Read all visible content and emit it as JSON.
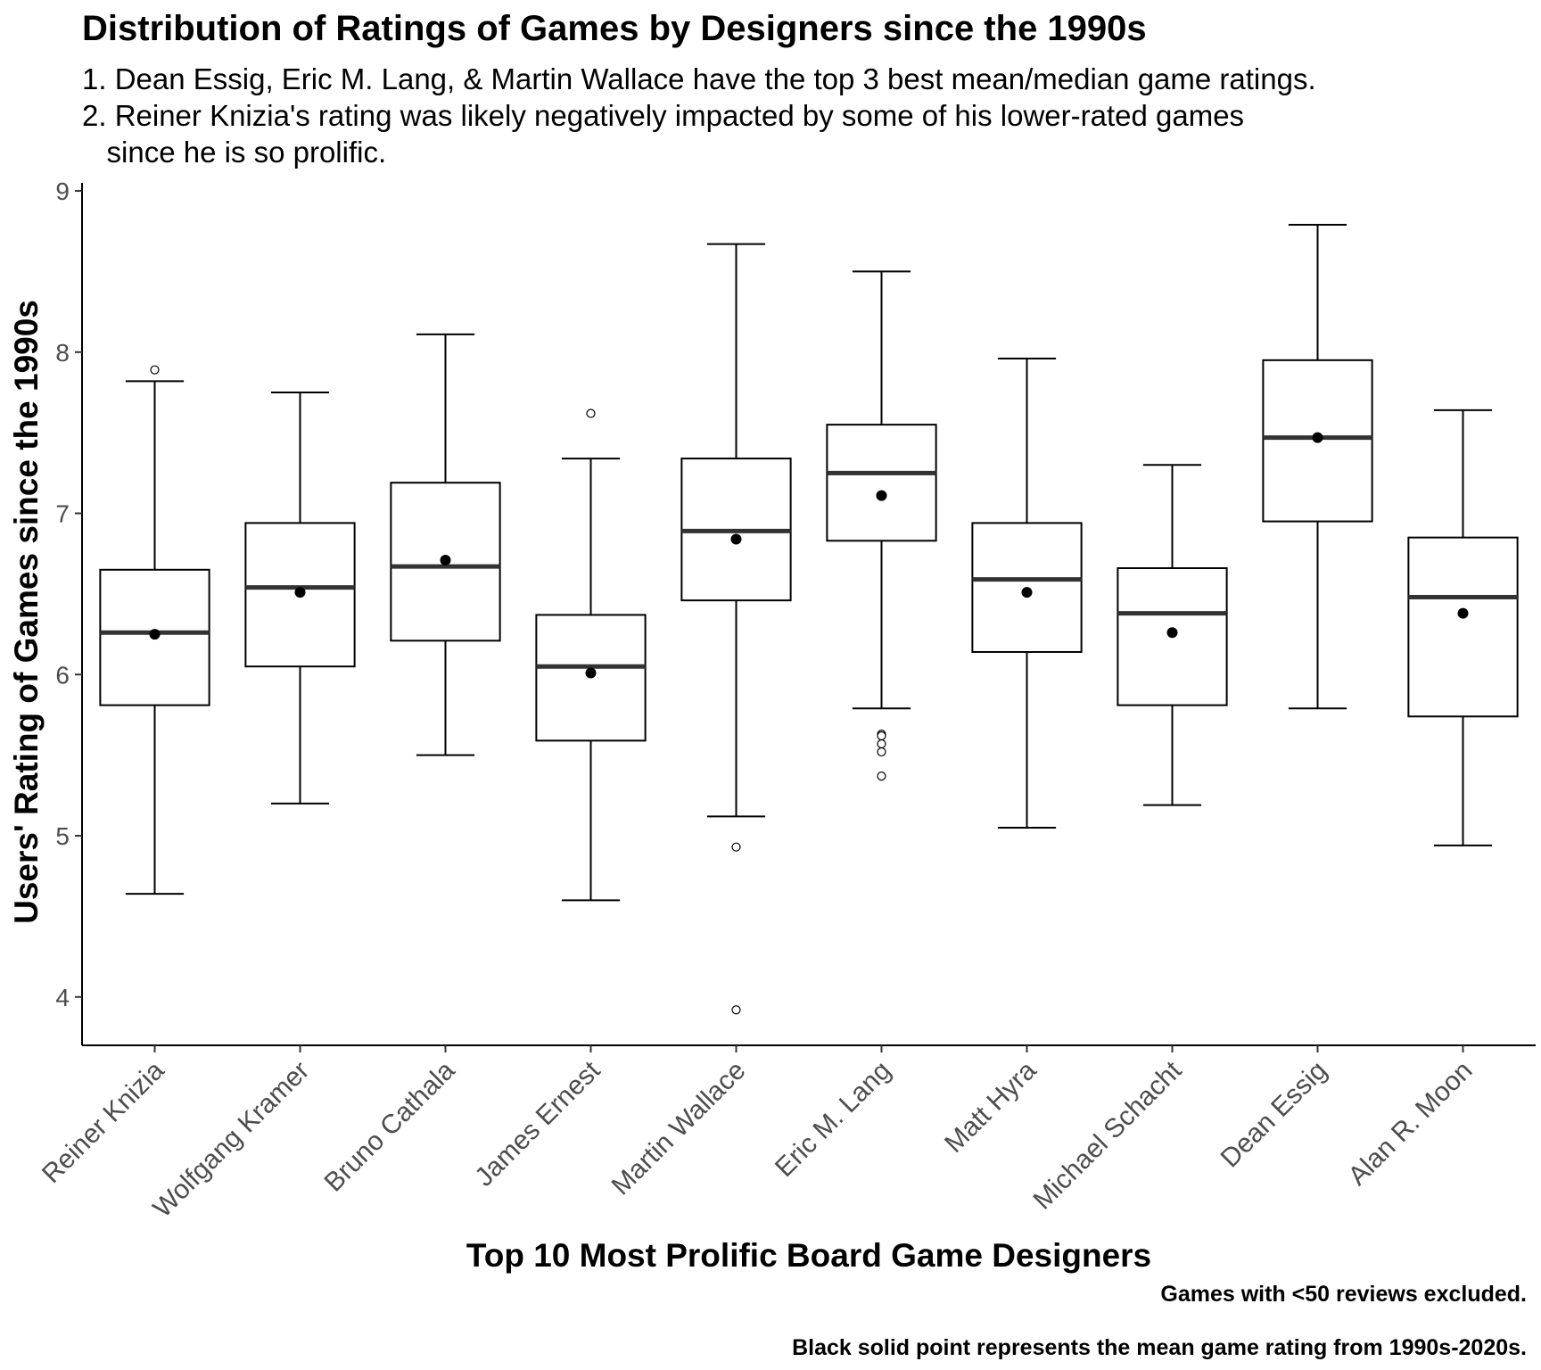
{
  "chart_data": {
    "type": "boxplot",
    "title": "Distribution of Ratings of Games by Designers since the 1990s",
    "subtitle_lines": [
      "1. Dean Essig, Eric M. Lang, & Martin Wallace have the top 3 best mean/median game ratings.",
      "2. Reiner Knizia's rating was likely negatively impacted by some of his lower-rated games",
      "   since he is so prolific."
    ],
    "xlabel": "Top 10 Most Prolific Board Game Designers",
    "ylabel": "Users' Rating of Games since the 1990s",
    "ylim": [
      3.7,
      9.05
    ],
    "yticks": [
      4,
      5,
      6,
      7,
      8,
      9
    ],
    "grid": false,
    "legend": "none",
    "captions": [
      "Games with <50 reviews excluded.",
      "Black solid point represents the mean game rating from 1990s-2020s."
    ],
    "categories": [
      "Reiner Knizia",
      "Wolfgang Kramer",
      "Bruno Cathala",
      "James Ernest",
      "Martin Wallace",
      "Eric M. Lang",
      "Matt Hyra",
      "Michael Schacht",
      "Dean Essig",
      "Alan R. Moon"
    ],
    "boxes": [
      {
        "min": 4.64,
        "q1": 5.81,
        "median": 6.26,
        "q3": 6.65,
        "max": 7.82,
        "mean": 6.25,
        "outliers": [
          7.89
        ]
      },
      {
        "min": 5.2,
        "q1": 6.05,
        "median": 6.54,
        "q3": 6.94,
        "max": 7.75,
        "mean": 6.51,
        "outliers": []
      },
      {
        "min": 5.5,
        "q1": 6.21,
        "median": 6.67,
        "q3": 7.19,
        "max": 8.11,
        "mean": 6.71,
        "outliers": []
      },
      {
        "min": 4.6,
        "q1": 5.59,
        "median": 6.05,
        "q3": 6.37,
        "max": 7.34,
        "mean": 6.01,
        "outliers": [
          7.62
        ]
      },
      {
        "min": 5.12,
        "q1": 6.46,
        "median": 6.89,
        "q3": 7.34,
        "max": 8.67,
        "mean": 6.84,
        "outliers": [
          4.93,
          3.92
        ]
      },
      {
        "min": 5.79,
        "q1": 6.83,
        "median": 7.25,
        "q3": 7.55,
        "max": 8.5,
        "mean": 7.11,
        "outliers": [
          5.63,
          5.62,
          5.57,
          5.52,
          5.37
        ]
      },
      {
        "min": 5.05,
        "q1": 6.14,
        "median": 6.59,
        "q3": 6.94,
        "max": 7.96,
        "mean": 6.51,
        "outliers": []
      },
      {
        "min": 5.19,
        "q1": 5.81,
        "median": 6.38,
        "q3": 6.66,
        "max": 7.3,
        "mean": 6.26,
        "outliers": []
      },
      {
        "min": 5.79,
        "q1": 6.95,
        "median": 7.47,
        "q3": 7.95,
        "max": 8.79,
        "mean": 7.47,
        "outliers": []
      },
      {
        "min": 4.94,
        "q1": 5.74,
        "median": 6.48,
        "q3": 6.85,
        "max": 7.64,
        "mean": 6.38,
        "outliers": []
      }
    ]
  }
}
